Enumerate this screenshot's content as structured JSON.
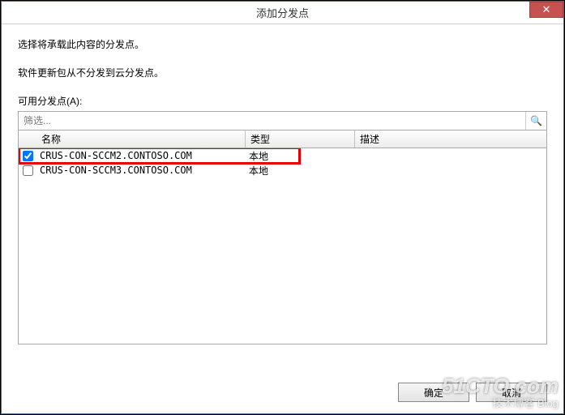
{
  "window": {
    "title": "添加分发点",
    "close_symbol": "✕"
  },
  "text": {
    "instruction": "选择将承载此内容的分发点。",
    "note": "软件更新包从不分发到云分发点。",
    "available_label": "可用分发点(A):"
  },
  "filter": {
    "placeholder": "筛选...",
    "search_glyph": "🔍"
  },
  "columns": {
    "name": "名称",
    "type": "类型",
    "desc": "描述"
  },
  "rows": [
    {
      "checked": true,
      "name": "CRUS-CON-SCCM2.CONTOSO.COM",
      "type": "本地",
      "highlighted": true
    },
    {
      "checked": false,
      "name": "CRUS-CON-SCCM3.CONTOSO.COM",
      "type": "本地",
      "highlighted": false
    }
  ],
  "buttons": {
    "ok": "确定",
    "cancel": "取消"
  },
  "watermark": {
    "main": "51CTO.com",
    "sub": "技术博客  Blog"
  },
  "colors": {
    "highlight_border": "#e60000",
    "close_bg": "#c75050",
    "window_border": "#4a6a8a"
  }
}
